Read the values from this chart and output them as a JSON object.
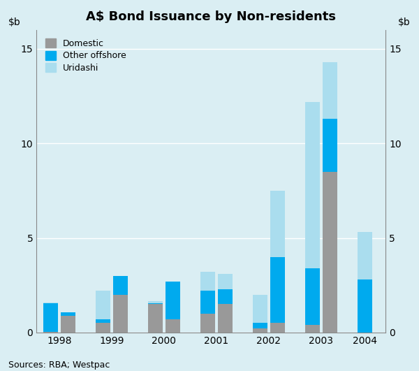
{
  "title": "A$ Bond Issuance by Non-residents",
  "source": "Sources: RBA; Westpac",
  "background_color": "#daeef3",
  "plot_background": "#daeef3",
  "ylim": [
    0,
    16
  ],
  "yticks": [
    0,
    5,
    10,
    15
  ],
  "legend_labels": [
    "Domestic",
    "Other offshore",
    "Uridashi"
  ],
  "colors": {
    "domestic": "#999999",
    "other_offshore": "#00aaee",
    "uridashi": "#aaddee"
  },
  "x_labels": [
    "1998",
    "1999",
    "2000",
    "2001",
    "2002",
    "2003",
    "2004"
  ],
  "bar_positions": [
    0.5,
    1.0,
    2.0,
    2.5,
    3.5,
    4.0,
    5.0,
    5.5,
    6.5,
    7.0,
    8.0,
    8.5,
    9.5
  ],
  "year_tick_positions": [
    0.75,
    2.25,
    3.75,
    5.25,
    6.75,
    8.25,
    9.5
  ],
  "domestic": [
    0.05,
    0.9,
    0.5,
    2.0,
    1.5,
    0.7,
    1.0,
    1.5,
    0.2,
    0.5,
    0.4,
    8.5,
    0.0
  ],
  "other_offshore": [
    1.5,
    0.15,
    0.2,
    1.0,
    0.05,
    2.0,
    1.2,
    0.8,
    0.3,
    3.5,
    3.0,
    2.8,
    2.8
  ],
  "uridashi": [
    0.05,
    0.0,
    1.5,
    0.0,
    0.1,
    0.0,
    1.0,
    0.8,
    1.5,
    3.5,
    8.8,
    3.0,
    2.5
  ]
}
